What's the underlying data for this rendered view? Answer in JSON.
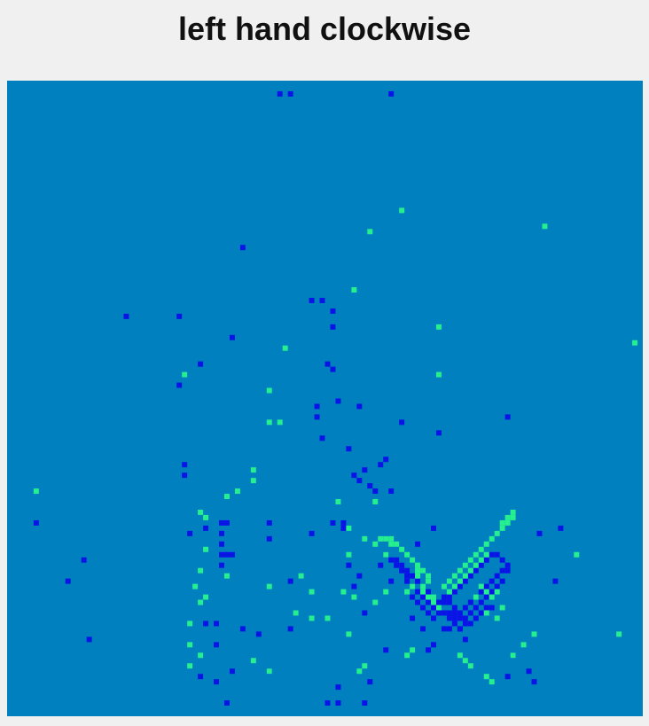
{
  "chart_data": {
    "type": "heatmap",
    "title": "left hand clockwise",
    "xlabel": "",
    "ylabel": "",
    "grid": false,
    "axis_ticks": "none",
    "colors": {
      "background_cell": "#0080bf",
      "blue_event": "#0a14e6",
      "green_event": "#25ef8e"
    },
    "cell_grid": {
      "columns": 120,
      "rows": 120
    },
    "events": {
      "blue": [
        [
          51,
          2
        ],
        [
          53,
          2
        ],
        [
          72,
          2
        ],
        [
          44,
          31
        ],
        [
          57,
          41
        ],
        [
          59,
          41
        ],
        [
          61,
          43
        ],
        [
          22,
          44
        ],
        [
          32,
          44
        ],
        [
          42,
          48
        ],
        [
          61,
          46
        ],
        [
          60,
          53
        ],
        [
          36,
          53
        ],
        [
          32,
          57
        ],
        [
          61,
          54
        ],
        [
          58,
          61
        ],
        [
          62,
          60
        ],
        [
          66,
          61
        ],
        [
          58,
          63
        ],
        [
          94,
          63
        ],
        [
          74,
          64
        ],
        [
          81,
          66
        ],
        [
          71,
          71
        ],
        [
          33,
          72
        ],
        [
          33,
          74
        ],
        [
          59,
          67
        ],
        [
          64,
          69
        ],
        [
          70,
          72
        ],
        [
          65,
          74
        ],
        [
          67,
          73
        ],
        [
          66,
          75
        ],
        [
          69,
          77
        ],
        [
          72,
          77
        ],
        [
          68,
          76
        ],
        [
          40,
          83
        ],
        [
          41,
          83
        ],
        [
          49,
          83
        ],
        [
          61,
          83
        ],
        [
          63,
          83
        ],
        [
          5,
          83
        ],
        [
          34,
          85
        ],
        [
          40,
          85
        ],
        [
          49,
          86
        ],
        [
          40,
          87
        ],
        [
          37,
          84
        ],
        [
          40,
          89
        ],
        [
          41,
          89
        ],
        [
          42,
          89
        ],
        [
          40,
          91
        ],
        [
          14,
          90
        ],
        [
          57,
          85
        ],
        [
          63,
          84
        ],
        [
          77,
          87
        ],
        [
          80,
          84
        ],
        [
          100,
          85
        ],
        [
          104,
          84
        ],
        [
          11,
          94
        ],
        [
          53,
          94
        ],
        [
          64,
          91
        ],
        [
          66,
          93
        ],
        [
          65,
          95
        ],
        [
          70,
          91
        ],
        [
          72,
          94
        ],
        [
          75,
          93
        ],
        [
          79,
          94
        ],
        [
          103,
          94
        ],
        [
          15,
          105
        ],
        [
          37,
          102
        ],
        [
          39,
          102
        ],
        [
          39,
          106
        ],
        [
          44,
          103
        ],
        [
          47,
          104
        ],
        [
          53,
          103
        ],
        [
          67,
          100
        ],
        [
          76,
          101
        ],
        [
          78,
          103
        ],
        [
          85,
          103
        ],
        [
          86,
          105
        ],
        [
          80,
          106
        ],
        [
          95,
          108
        ],
        [
          98,
          111
        ],
        [
          36,
          112
        ],
        [
          39,
          113
        ],
        [
          42,
          111
        ],
        [
          49,
          111
        ],
        [
          62,
          114
        ],
        [
          68,
          113
        ],
        [
          71,
          107
        ],
        [
          79,
          107
        ],
        [
          94,
          112
        ],
        [
          99,
          113
        ],
        [
          41,
          117
        ],
        [
          60,
          117
        ],
        [
          62,
          117
        ],
        [
          67,
          117
        ],
        [
          71,
          89
        ],
        [
          72,
          90
        ],
        [
          73,
          91
        ],
        [
          74,
          92
        ],
        [
          75,
          94
        ],
        [
          76,
          95
        ],
        [
          77,
          96
        ],
        [
          78,
          97
        ],
        [
          79,
          98
        ],
        [
          80,
          99
        ],
        [
          81,
          99
        ],
        [
          82,
          100
        ],
        [
          83,
          101
        ],
        [
          84,
          101
        ],
        [
          85,
          101
        ],
        [
          86,
          101
        ],
        [
          87,
          100
        ],
        [
          88,
          99
        ],
        [
          89,
          98
        ],
        [
          90,
          97
        ],
        [
          91,
          96
        ],
        [
          92,
          95
        ],
        [
          93,
          94
        ],
        [
          94,
          92
        ],
        [
          94,
          91
        ],
        [
          93,
          90
        ],
        [
          92,
          89
        ],
        [
          91,
          89
        ],
        [
          90,
          90
        ],
        [
          89,
          91
        ],
        [
          88,
          92
        ],
        [
          87,
          93
        ],
        [
          86,
          94
        ],
        [
          85,
          95
        ],
        [
          84,
          96
        ],
        [
          83,
          97
        ],
        [
          82,
          98
        ],
        [
          81,
          98
        ],
        [
          80,
          97
        ],
        [
          79,
          96
        ],
        [
          78,
          95
        ],
        [
          77,
          94
        ],
        [
          76,
          93
        ],
        [
          75,
          92
        ],
        [
          74,
          91
        ],
        [
          73,
          90
        ],
        [
          82,
          97
        ],
        [
          83,
          98
        ],
        [
          84,
          99
        ],
        [
          85,
          100
        ],
        [
          86,
          99
        ],
        [
          87,
          98
        ],
        [
          88,
          97
        ],
        [
          89,
          96
        ],
        [
          90,
          95
        ],
        [
          91,
          94
        ],
        [
          92,
          93
        ],
        [
          93,
          92
        ],
        [
          84,
          100
        ],
        [
          83,
          100
        ],
        [
          81,
          100
        ],
        [
          80,
          101
        ],
        [
          79,
          100
        ],
        [
          78,
          99
        ],
        [
          77,
          98
        ],
        [
          76,
          97
        ],
        [
          86,
          102
        ],
        [
          87,
          102
        ],
        [
          88,
          101
        ],
        [
          89,
          100
        ],
        [
          90,
          99
        ],
        [
          91,
          99
        ],
        [
          84,
          102
        ],
        [
          85,
          103
        ],
        [
          83,
          103
        ],
        [
          82,
          103
        ]
      ],
      "green": [
        [
          74,
          24
        ],
        [
          68,
          28
        ],
        [
          101,
          27
        ],
        [
          65,
          39
        ],
        [
          81,
          46
        ],
        [
          118,
          49
        ],
        [
          52,
          50
        ],
        [
          33,
          55
        ],
        [
          49,
          58
        ],
        [
          81,
          55
        ],
        [
          49,
          64
        ],
        [
          51,
          64
        ],
        [
          5,
          77
        ],
        [
          46,
          73
        ],
        [
          46,
          75
        ],
        [
          43,
          77
        ],
        [
          36,
          81
        ],
        [
          37,
          82
        ],
        [
          41,
          78
        ],
        [
          62,
          79
        ],
        [
          69,
          79
        ],
        [
          64,
          84
        ],
        [
          67,
          86
        ],
        [
          64,
          89
        ],
        [
          72,
          87
        ],
        [
          71,
          89
        ],
        [
          35,
          95
        ],
        [
          36,
          98
        ],
        [
          37,
          97
        ],
        [
          49,
          95
        ],
        [
          34,
          102
        ],
        [
          34,
          106
        ],
        [
          34,
          110
        ],
        [
          36,
          108
        ],
        [
          46,
          109
        ],
        [
          49,
          111
        ],
        [
          66,
          111
        ],
        [
          67,
          110
        ],
        [
          37,
          88
        ],
        [
          36,
          92
        ],
        [
          41,
          93
        ],
        [
          55,
          93
        ],
        [
          57,
          96
        ],
        [
          63,
          96
        ],
        [
          65,
          97
        ],
        [
          69,
          98
        ],
        [
          71,
          96
        ],
        [
          54,
          100
        ],
        [
          57,
          101
        ],
        [
          60,
          101
        ],
        [
          64,
          104
        ],
        [
          75,
          108
        ],
        [
          76,
          107
        ],
        [
          107,
          89
        ],
        [
          115,
          104
        ],
        [
          77,
          91
        ],
        [
          77,
          93
        ],
        [
          76,
          95
        ],
        [
          75,
          96
        ],
        [
          78,
          92
        ],
        [
          79,
          93
        ],
        [
          79,
          94
        ],
        [
          80,
          97
        ],
        [
          81,
          99
        ],
        [
          77,
          92
        ],
        [
          78,
          95
        ],
        [
          78,
          96
        ],
        [
          79,
          97
        ],
        [
          80,
          98
        ],
        [
          82,
          95
        ],
        [
          83,
          94
        ],
        [
          84,
          93
        ],
        [
          85,
          92
        ],
        [
          86,
          91
        ],
        [
          87,
          90
        ],
        [
          88,
          89
        ],
        [
          89,
          88
        ],
        [
          90,
          87
        ],
        [
          91,
          86
        ],
        [
          92,
          85
        ],
        [
          93,
          84
        ],
        [
          94,
          83
        ],
        [
          95,
          82
        ],
        [
          95,
          81
        ],
        [
          94,
          82
        ],
        [
          93,
          83
        ],
        [
          83,
          96
        ],
        [
          84,
          95
        ],
        [
          85,
          94
        ],
        [
          86,
          93
        ],
        [
          87,
          92
        ],
        [
          88,
          91
        ],
        [
          89,
          90
        ],
        [
          90,
          89
        ],
        [
          77,
          91
        ],
        [
          77,
          92
        ],
        [
          76,
          90
        ],
        [
          75,
          89
        ],
        [
          74,
          88
        ],
        [
          73,
          87
        ],
        [
          72,
          86
        ],
        [
          71,
          86
        ],
        [
          70,
          86
        ],
        [
          69,
          87
        ],
        [
          88,
          97
        ],
        [
          89,
          95
        ],
        [
          90,
          96
        ],
        [
          91,
          97
        ],
        [
          92,
          96
        ],
        [
          90,
          100
        ],
        [
          92,
          101
        ],
        [
          93,
          99
        ],
        [
          85,
          108
        ],
        [
          86,
          109
        ],
        [
          87,
          110
        ],
        [
          90,
          112
        ],
        [
          91,
          113
        ],
        [
          95,
          108
        ],
        [
          97,
          106
        ],
        [
          99,
          104
        ]
      ]
    }
  }
}
